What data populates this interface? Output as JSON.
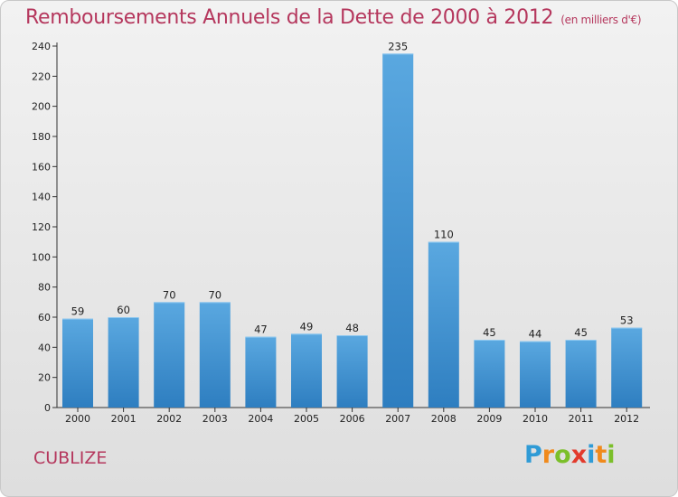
{
  "chart_data": {
    "type": "bar",
    "title": "Remboursements Annuels de la Dette de 2000 à 2012",
    "subtitle": "(en milliers d'€)",
    "categories": [
      "2000",
      "2001",
      "2002",
      "2003",
      "2004",
      "2005",
      "2006",
      "2007",
      "2008",
      "2009",
      "2010",
      "2011",
      "2012"
    ],
    "values": [
      59,
      60,
      70,
      70,
      47,
      49,
      48,
      235,
      110,
      45,
      44,
      45,
      53
    ],
    "ylim": [
      0,
      240
    ],
    "yticks": [
      0,
      20,
      40,
      60,
      80,
      100,
      120,
      140,
      160,
      180,
      200,
      220,
      240
    ],
    "xlabel": "",
    "ylabel": "",
    "grid": false,
    "bar_color": "#5aa8e0",
    "bar_color_dark": "#2e7ec0"
  },
  "footer": {
    "commune": "CUBLIZE",
    "brand_letters": [
      {
        "ch": "P",
        "color": "#2f9bd6"
      },
      {
        "ch": "r",
        "color": "#f08a1c"
      },
      {
        "ch": "o",
        "color": "#7bbf2a"
      },
      {
        "ch": "x",
        "color": "#e23a2c"
      },
      {
        "ch": "i",
        "color": "#2f9bd6"
      },
      {
        "ch": "t",
        "color": "#f08a1c"
      },
      {
        "ch": "i",
        "color": "#7bbf2a"
      }
    ]
  },
  "colors": {
    "title": "#b5375d",
    "axis": "#333333"
  }
}
